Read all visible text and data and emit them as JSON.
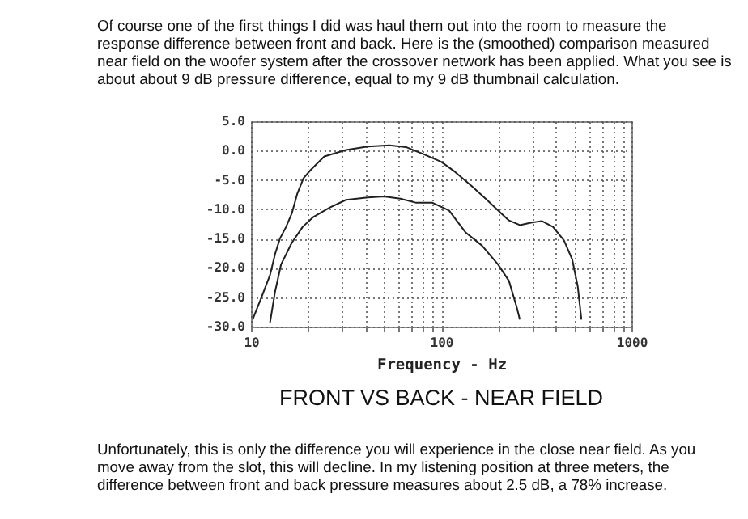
{
  "chart_data": {
    "type": "line",
    "title": "FRONT VS BACK - NEAR FIELD",
    "xlabel": "Frequency - Hz",
    "annotations": [
      "Of course one of the first things I did was haul them out into the room to measure the response difference between front and back.  Here is the (smoothed) comparison measured near field on the woofer system after the crossover network has been applied.  What you see is about about 9 dB pressure difference, equal to my 9 dB thumbnail calculation.",
      "Unfortunately, this is only the difference you will experience in the close near field.  As you move away from the slot, this will decline.  In my listening position at three meters, the difference between front and back pressure measures about 2.5 dB, a 78% increase."
    ],
    "log": "x",
    "grid": true,
    "line_style": "solid",
    "marker": "none",
    "xlim": [
      10,
      1000
    ],
    "xticks": [
      10,
      {
        "value": 20,
        "label": null
      },
      {
        "value": 30,
        "label": null
      },
      {
        "value": 40,
        "label": null
      },
      {
        "value": 50,
        "label": null
      },
      {
        "value": 60,
        "label": null
      },
      {
        "value": 70,
        "label": null
      },
      {
        "value": 80,
        "label": null
      },
      {
        "value": 90,
        "label": null
      },
      100,
      {
        "value": 200,
        "label": null
      },
      {
        "value": 300,
        "label": null
      },
      {
        "value": 400,
        "label": null
      },
      {
        "value": 500,
        "label": null
      },
      {
        "value": 600,
        "label": null
      },
      {
        "value": 700,
        "label": null
      },
      {
        "value": 800,
        "label": null
      },
      {
        "value": 900,
        "label": null
      },
      1000
    ],
    "ylim": [
      -30,
      5
    ],
    "yticks": [
      {
        "value": 5,
        "label": "5.0"
      },
      {
        "value": 0,
        "label": "0.0"
      },
      {
        "value": -5,
        "label": "-5.0"
      },
      {
        "value": -10,
        "label": "-10.0"
      },
      {
        "value": -15,
        "label": "-15.0"
      },
      {
        "value": -20,
        "label": "-20.0"
      },
      {
        "value": -25,
        "label": "-25.0"
      },
      {
        "value": -30,
        "label": "-30.0"
      }
    ],
    "series": [
      {
        "color": "#202020",
        "x": [
          10.2,
          11.4,
          12.6,
          13.4,
          14.2,
          15.3,
          16.4,
          17.5,
          18.9,
          20.6,
          24.3,
          31.6,
          41.1,
          53.5,
          65.3,
          79.3,
          100,
          118,
          144,
          174,
          199,
          227,
          259,
          296,
          338,
          387,
          442,
          488,
          522,
          546
        ],
        "values": [
          -28.8,
          -24.9,
          -21.2,
          -17.6,
          -15.0,
          -13.0,
          -10.7,
          -7.4,
          -4.7,
          -3.3,
          -1.0,
          0.1,
          0.7,
          0.9,
          0.6,
          -0.5,
          -1.9,
          -3.6,
          -6.0,
          -8.4,
          -10.2,
          -11.9,
          -12.7,
          -12.3,
          -12.0,
          -13.0,
          -15.3,
          -18.5,
          -23.1,
          -28.8
        ]
      },
      {
        "color": "#202020",
        "x": [
          12.6,
          13.4,
          14.4,
          16.4,
          18.7,
          21.3,
          26,
          31.6,
          41.1,
          50,
          61,
          74,
          90,
          110,
          134,
          164,
          199,
          227,
          250,
          259
        ],
        "values": [
          -29.3,
          -24.0,
          -19.4,
          -15.7,
          -13.0,
          -11.3,
          -9.7,
          -8.4,
          -8.0,
          -7.8,
          -8.2,
          -8.9,
          -8.9,
          -10.2,
          -13.9,
          -16.2,
          -19.4,
          -22.2,
          -26.8,
          -28.8
        ]
      }
    ]
  }
}
